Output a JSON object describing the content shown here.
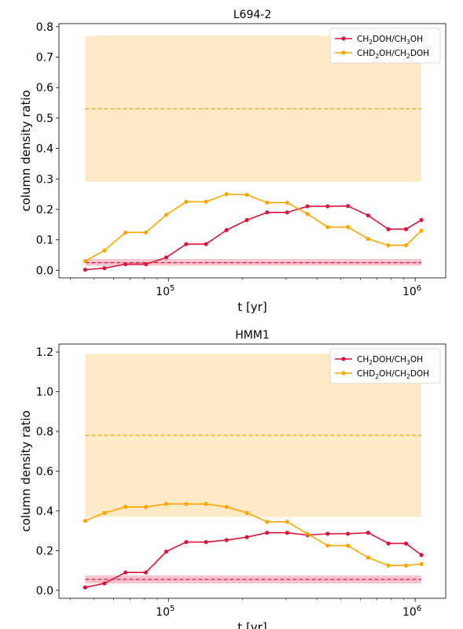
{
  "chart_data": [
    {
      "type": "line",
      "title": "L694-2",
      "xlabel": "t [yr]",
      "ylabel": "column density ratio",
      "xscale": "log",
      "xlim": [
        36000,
        1330000
      ],
      "ylim": [
        -0.025,
        0.81
      ],
      "yticks": [
        0.0,
        0.1,
        0.2,
        0.3,
        0.4,
        0.5,
        0.6,
        0.7,
        0.8
      ],
      "ytick_labels": [
        "0.0",
        "0.1",
        "0.2",
        "0.3",
        "0.4",
        "0.5",
        "0.6",
        "0.7",
        "0.8"
      ],
      "xticks_major": [
        100000,
        1000000
      ],
      "x": [
        46000,
        55000,
        67000,
        81000,
        98000,
        118000,
        142000,
        172000,
        208000,
        251000,
        303000,
        366000,
        442000,
        534000,
        645000,
        779000,
        918000,
        1060000
      ],
      "series": [
        {
          "name": "CH2DOH/CH3OH",
          "label_main": "CH",
          "label_sub1": "2",
          "label_mid": "DOH/CH",
          "label_sub2": "3",
          "label_end": "OH",
          "color": "#dc143c",
          "values": [
            0.002,
            0.007,
            0.02,
            0.02,
            0.042,
            0.086,
            0.086,
            0.132,
            0.165,
            0.19,
            0.19,
            0.21,
            0.21,
            0.211,
            0.18,
            0.135,
            0.135,
            0.165
          ]
        },
        {
          "name": "CHD2OH/CH2DOH",
          "label_main": "CHD",
          "label_sub1": "2",
          "label_mid": "OH/CH",
          "label_sub2": "2",
          "label_end": "DOH",
          "color": "#ffa500",
          "values": [
            0.03,
            0.065,
            0.124,
            0.124,
            0.182,
            0.225,
            0.225,
            0.25,
            0.248,
            0.222,
            0.222,
            0.185,
            0.142,
            0.142,
            0.103,
            0.082,
            0.082,
            0.13
          ]
        }
      ],
      "bands": [
        {
          "series": "CHD2OH/CH2DOH",
          "low": 0.29,
          "high": 0.77,
          "mid": 0.53,
          "color": "#ffe9c6",
          "line_color": "#e8b020"
        },
        {
          "series": "CH2DOH/CH3OH",
          "low": 0.015,
          "high": 0.037,
          "mid": 0.025,
          "color": "#f8c5cf",
          "line_color": "#dc143c"
        }
      ],
      "band_x": [
        46000,
        1060000
      ],
      "legend": "top-right"
    },
    {
      "type": "line",
      "title": "HMM1",
      "xlabel": "t [yr]",
      "ylabel": "column density ratio",
      "xscale": "log",
      "xlim": [
        36000,
        1330000
      ],
      "ylim": [
        -0.04,
        1.24
      ],
      "yticks": [
        0.0,
        0.2,
        0.4,
        0.6,
        0.8,
        1.0,
        1.2
      ],
      "ytick_labels": [
        "0.0",
        "0.2",
        "0.4",
        "0.6",
        "0.8",
        "1.0",
        "1.2"
      ],
      "xticks_major": [
        100000,
        1000000
      ],
      "x": [
        46000,
        55000,
        67000,
        81000,
        98000,
        118000,
        142000,
        172000,
        208000,
        251000,
        303000,
        366000,
        442000,
        534000,
        645000,
        779000,
        918000,
        1060000
      ],
      "series": [
        {
          "name": "CH2DOH/CH3OH",
          "label_main": "CH",
          "label_sub1": "2",
          "label_mid": "DOH/CH",
          "label_sub2": "3",
          "label_end": "OH",
          "color": "#dc143c",
          "values": [
            0.015,
            0.035,
            0.09,
            0.09,
            0.195,
            0.243,
            0.243,
            0.253,
            0.268,
            0.29,
            0.29,
            0.278,
            0.285,
            0.285,
            0.29,
            0.236,
            0.236,
            0.178
          ]
        },
        {
          "name": "CHD2OH/CH2DOH",
          "label_main": "CHD",
          "label_sub1": "2",
          "label_mid": "OH/CH",
          "label_sub2": "2",
          "label_end": "DOH",
          "color": "#ffa500",
          "values": [
            0.35,
            0.39,
            0.42,
            0.42,
            0.435,
            0.435,
            0.435,
            0.42,
            0.39,
            0.345,
            0.345,
            0.285,
            0.225,
            0.225,
            0.165,
            0.125,
            0.125,
            0.133
          ]
        }
      ],
      "bands": [
        {
          "series": "CHD2OH/CH2DOH",
          "low": 0.37,
          "high": 1.19,
          "mid": 0.78,
          "color": "#ffe9c6",
          "line_color": "#e8b020"
        },
        {
          "series": "CH2DOH/CH3OH",
          "low": 0.035,
          "high": 0.075,
          "mid": 0.055,
          "color": "#f8c5cf",
          "line_color": "#dc143c"
        }
      ],
      "band_x": [
        46000,
        1060000
      ],
      "legend": "top-right"
    }
  ]
}
